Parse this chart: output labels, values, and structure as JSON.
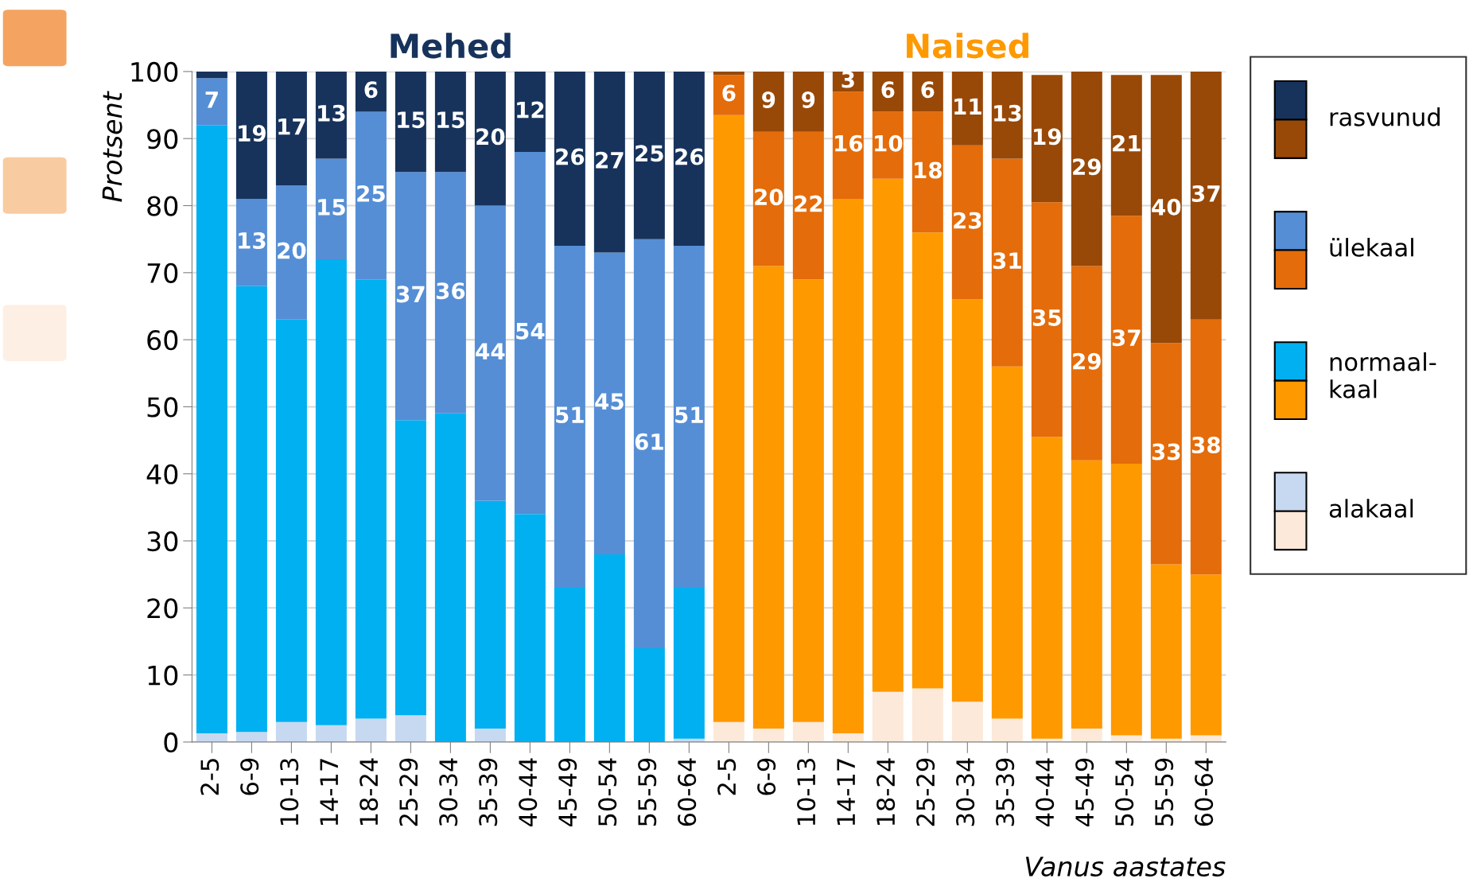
{
  "chart_data": {
    "type": "bar",
    "stacked": true,
    "categories": [
      "2-5",
      "6-9",
      "10-13",
      "14-17",
      "18-24",
      "25-29",
      "30-34",
      "35-39",
      "40-44",
      "45-49",
      "50-54",
      "55-59",
      "60-64",
      "2-5",
      "6-9",
      "10-13",
      "14-17",
      "18-24",
      "25-29",
      "30-34",
      "35-39",
      "40-44",
      "45-49",
      "50-54",
      "55-59",
      "60-64"
    ],
    "series": [
      {
        "name": "alakaal",
        "color": "#c6d9f1",
        "colors": [
          "#c6d9f1",
          "#c6d9f1",
          "#c6d9f1",
          "#c6d9f1",
          "#c6d9f1",
          "#c6d9f1",
          "#c6d9f1",
          "#c6d9f1",
          "#c6d9f1",
          "#c6d9f1",
          "#c6d9f1",
          "#c6d9f1",
          "#c6d9f1",
          "#fde9d9",
          "#fde9d9",
          "#fde9d9",
          "#fde9d9",
          "#fde9d9",
          "#fde9d9",
          "#fde9d9",
          "#fde9d9",
          "#fde9d9",
          "#fde9d9",
          "#fde9d9",
          "#fde9d9",
          "#fde9d9"
        ],
        "values": [
          1.3,
          1.5,
          3,
          2.5,
          3.5,
          4,
          0,
          2,
          0,
          0,
          0,
          0,
          0.5,
          3,
          2,
          3,
          1.3,
          7.5,
          8,
          6,
          3.5,
          0.5,
          2,
          1,
          0.5,
          1
        ],
        "value_labels": [
          null,
          null,
          null,
          null,
          null,
          null,
          null,
          null,
          null,
          null,
          null,
          null,
          null,
          null,
          null,
          null,
          null,
          null,
          null,
          null,
          null,
          null,
          null,
          null,
          null,
          null
        ]
      },
      {
        "name": "normaal-\nkaal",
        "color": "#00b0f0",
        "colors": [
          "#00b0f0",
          "#00b0f0",
          "#00b0f0",
          "#00b0f0",
          "#00b0f0",
          "#00b0f0",
          "#00b0f0",
          "#00b0f0",
          "#00b0f0",
          "#00b0f0",
          "#00b0f0",
          "#00b0f0",
          "#00b0f0",
          "#ff9900",
          "#ff9900",
          "#ff9900",
          "#ff9900",
          "#ff9900",
          "#ff9900",
          "#ff9900",
          "#ff9900",
          "#ff9900",
          "#ff9900",
          "#ff9900",
          "#ff9900",
          "#ff9900"
        ],
        "values": [
          90.7,
          66.5,
          60,
          69.5,
          65.5,
          44,
          49,
          34,
          34,
          23,
          28,
          14,
          22.5,
          90.5,
          69,
          66,
          79.7,
          76.5,
          68,
          60,
          52.5,
          45,
          40,
          40.5,
          26,
          24
        ],
        "value_labels": [
          null,
          null,
          null,
          null,
          null,
          null,
          null,
          null,
          null,
          null,
          null,
          null,
          null,
          null,
          null,
          null,
          null,
          null,
          null,
          null,
          null,
          null,
          null,
          null,
          null,
          null
        ]
      },
      {
        "name": "ülekaal",
        "color": "#558ed5",
        "colors": [
          "#558ed5",
          "#558ed5",
          "#558ed5",
          "#558ed5",
          "#558ed5",
          "#558ed5",
          "#558ed5",
          "#558ed5",
          "#558ed5",
          "#558ed5",
          "#558ed5",
          "#558ed5",
          "#558ed5",
          "#e46c0a",
          "#e46c0a",
          "#e46c0a",
          "#e46c0a",
          "#e46c0a",
          "#e46c0a",
          "#e46c0a",
          "#e46c0a",
          "#e46c0a",
          "#e46c0a",
          "#e46c0a",
          "#e46c0a",
          "#e46c0a"
        ],
        "values": [
          7,
          13,
          20,
          15,
          25,
          37,
          36,
          44,
          54,
          51,
          45,
          61,
          51,
          6,
          20,
          22,
          16,
          10,
          18,
          23,
          31,
          35,
          29,
          37,
          33,
          38
        ],
        "value_labels": [
          "7",
          "13",
          "20",
          "15",
          "25",
          "37",
          "36",
          "44",
          "54",
          "51",
          "45",
          "61",
          "51",
          "6",
          "20",
          "22",
          "16",
          "10",
          "18",
          "23",
          "31",
          "35",
          "29",
          "37",
          "33",
          "38"
        ]
      },
      {
        "name": "rasvunud",
        "color": "#17335c",
        "colors": [
          "#17335c",
          "#17335c",
          "#17335c",
          "#17335c",
          "#17335c",
          "#17335c",
          "#17335c",
          "#17335c",
          "#17335c",
          "#17335c",
          "#17335c",
          "#17335c",
          "#17335c",
          "#984807",
          "#984807",
          "#984807",
          "#984807",
          "#984807",
          "#984807",
          "#984807",
          "#984807",
          "#984807",
          "#984807",
          "#984807",
          "#984807",
          "#984807"
        ],
        "values": [
          1,
          19,
          17,
          13,
          6,
          15,
          15,
          20,
          12,
          26,
          27,
          25,
          26,
          0.5,
          9,
          9,
          3,
          6,
          6,
          11,
          13,
          19,
          29,
          21,
          40,
          37
        ],
        "value_labels": [
          null,
          "19",
          "17",
          "13",
          "6",
          "15",
          "15",
          "20",
          "12",
          "26",
          "27",
          "25",
          "26",
          null,
          "9",
          "9",
          "3",
          "6",
          "6",
          "11",
          "13",
          "19",
          "29",
          "21",
          "40",
          "37"
        ]
      }
    ],
    "ylim": [
      0,
      100
    ],
    "yticks": [
      0,
      10,
      20,
      30,
      40,
      50,
      60,
      70,
      80,
      90,
      100
    ],
    "ylabel": "Protsent",
    "xlabel": "Vanus aastates",
    "annotations": [
      "Mehed",
      "Naised"
    ],
    "grid": "y",
    "legend": "right"
  }
}
